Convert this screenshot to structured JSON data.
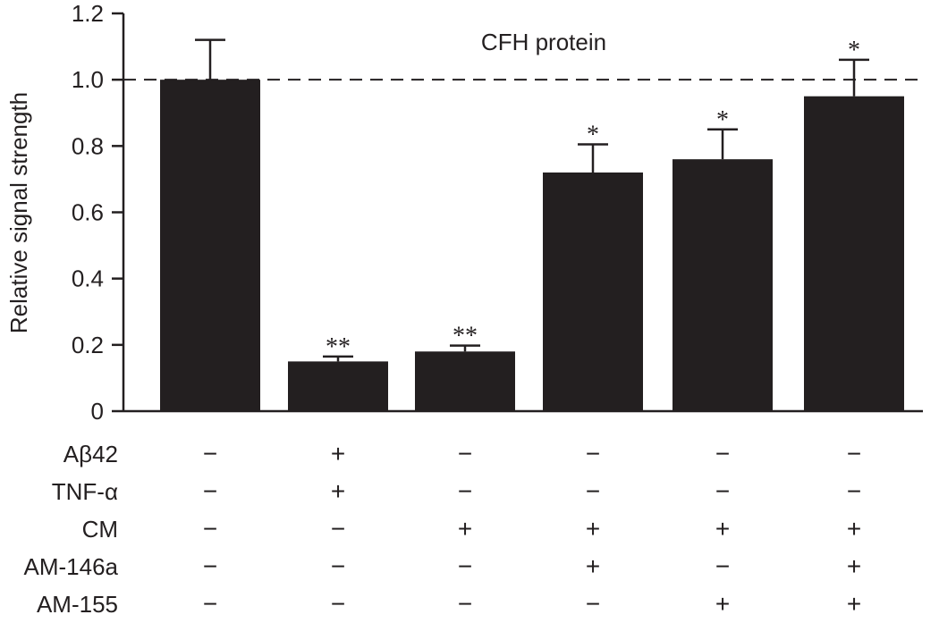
{
  "chart_data": {
    "type": "bar",
    "title": "CFH protein",
    "ylabel": "Relative signal strength",
    "xlabel": "",
    "ylim": [
      0,
      1.2
    ],
    "yticks": [
      0,
      0.2,
      0.4,
      0.6,
      0.8,
      1.0,
      1.2
    ],
    "ytick_labels": [
      "0",
      "0.2",
      "0.4",
      "0.6",
      "0.8",
      "1.0",
      "1.2"
    ],
    "reference_line": 1.0,
    "grid": false,
    "bar_color": "#231f20",
    "values": [
      1.0,
      0.15,
      0.18,
      0.72,
      0.76,
      0.95
    ],
    "errors": [
      0.12,
      0.015,
      0.018,
      0.085,
      0.09,
      0.11
    ],
    "annotations": [
      "",
      "**",
      "**",
      "*",
      "*",
      "*"
    ],
    "conditions": [
      {
        "name": "Aβ42",
        "marks": [
          "−",
          "+",
          "−",
          "−",
          "−",
          "−"
        ]
      },
      {
        "name": "TNF-α",
        "marks": [
          "−",
          "+",
          "−",
          "−",
          "−",
          "−"
        ]
      },
      {
        "name": "CM",
        "marks": [
          "−",
          "−",
          "+",
          "+",
          "+",
          "+"
        ]
      },
      {
        "name": "AM-146a",
        "marks": [
          "−",
          "−",
          "−",
          "+",
          "−",
          "+"
        ]
      },
      {
        "name": "AM-155",
        "marks": [
          "−",
          "−",
          "−",
          "−",
          "+",
          "+"
        ]
      }
    ]
  }
}
